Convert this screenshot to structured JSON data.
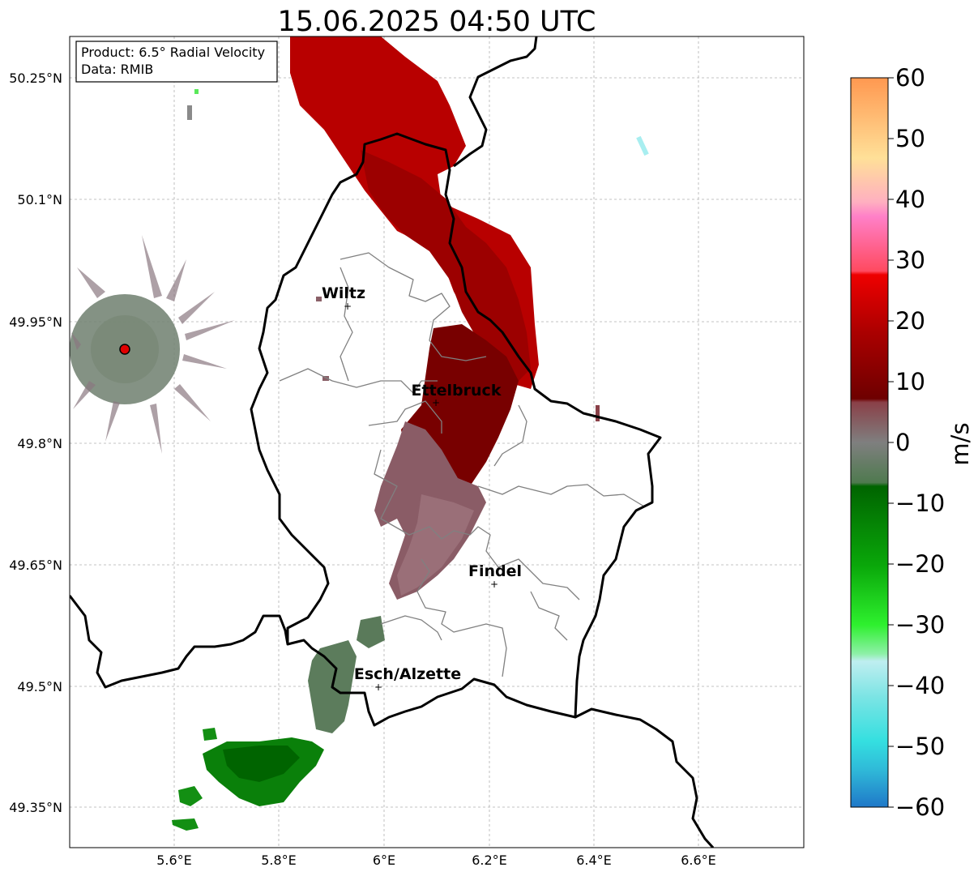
{
  "title": "15.06.2025 04:50 UTC",
  "info_box": {
    "product": "Product: 6.5° Radial Velocity",
    "data": "Data: RMIB"
  },
  "x_ticks": [
    "5.6°E",
    "5.8°E",
    "6°E",
    "6.2°E",
    "6.4°E",
    "6.6°E"
  ],
  "y_ticks": [
    "50.25°N",
    "50.1°N",
    "49.95°N",
    "49.8°N",
    "49.65°N",
    "49.5°N",
    "49.35°N"
  ],
  "cities": [
    {
      "name": "Wiltz",
      "lon": 5.93,
      "lat": 49.968
    },
    {
      "name": "Ettelbruck",
      "lon": 6.1,
      "lat": 49.85
    },
    {
      "name": "Findel",
      "lon": 6.21,
      "lat": 49.627
    },
    {
      "name": "Esch/Alzette",
      "lon": 5.99,
      "lat": 49.5
    }
  ],
  "radar_site": {
    "lon": 5.505,
    "lat": 49.915,
    "color": "#e00000"
  },
  "colorbar": {
    "label": "m/s",
    "min": -60,
    "max": 60,
    "ticks": [
      "60",
      "50",
      "40",
      "30",
      "20",
      "10",
      "0",
      "−10",
      "−20",
      "−30",
      "−40",
      "−50",
      "−60"
    ]
  },
  "map_extent": {
    "lon": [
      5.4,
      6.8
    ],
    "lat": [
      49.3,
      50.3
    ]
  },
  "colors": {
    "approaching_green": "#0a7a0a",
    "near_zero_green": "#5f7f5f",
    "near_zero_mauve": "#8a6068",
    "receding_darkred": "#7a0000",
    "receding_red": "#b40000"
  }
}
